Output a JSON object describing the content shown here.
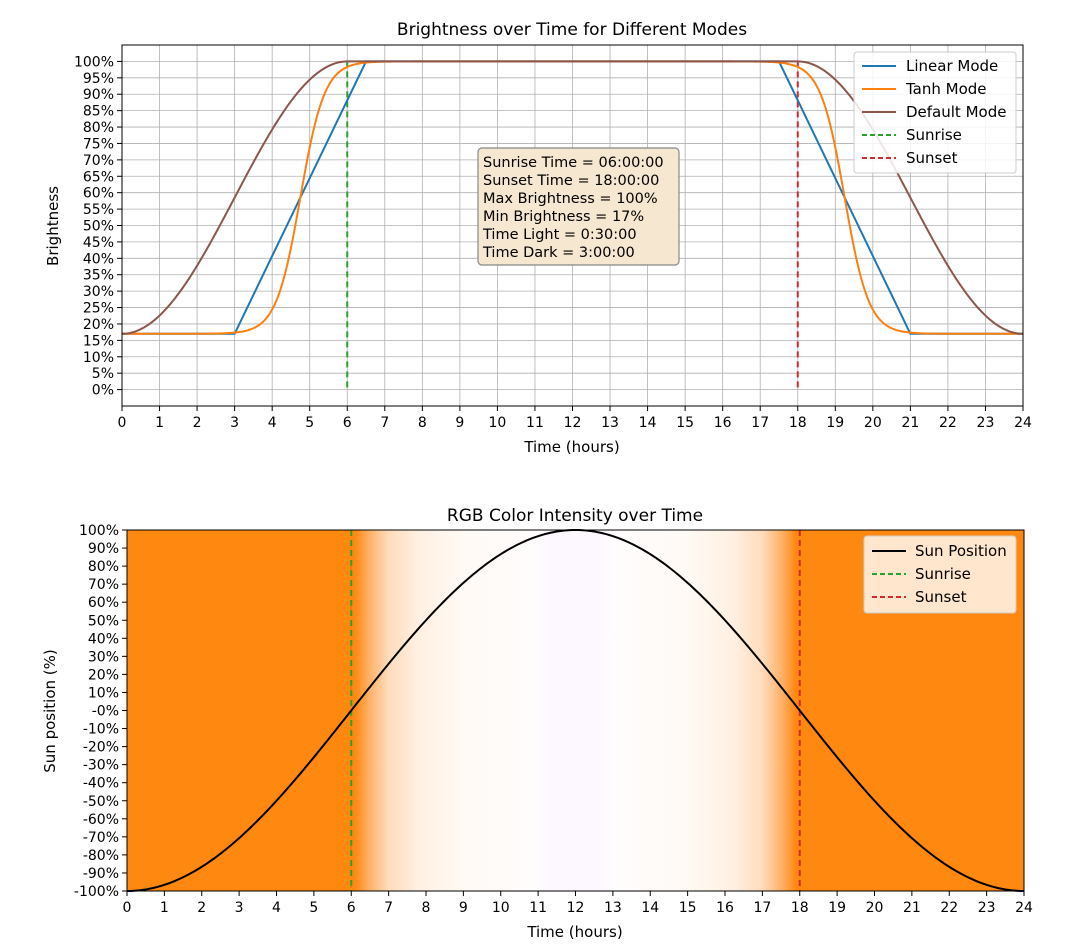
{
  "chart_data": [
    {
      "type": "line",
      "title": "Brightness over Time for Different Modes",
      "xlabel": "Time (hours)",
      "ylabel": "Brightness",
      "xlim": [
        0,
        24
      ],
      "ylim": [
        -5,
        105
      ],
      "grid": true,
      "xticks": [
        0,
        1,
        2,
        3,
        4,
        5,
        6,
        7,
        8,
        9,
        10,
        11,
        12,
        13,
        14,
        15,
        16,
        17,
        18,
        19,
        20,
        21,
        22,
        23,
        24
      ],
      "yticks": [
        0,
        5,
        10,
        15,
        20,
        25,
        30,
        35,
        40,
        45,
        50,
        55,
        60,
        65,
        70,
        75,
        80,
        85,
        90,
        95,
        100
      ],
      "ytick_labels": [
        "0%",
        "5%",
        "10%",
        "15%",
        "20%",
        "25%",
        "30%",
        "35%",
        "40%",
        "45%",
        "50%",
        "55%",
        "60%",
        "65%",
        "70%",
        "75%",
        "80%",
        "85%",
        "90%",
        "95%",
        "100%"
      ],
      "series": [
        {
          "name": "Linear Mode",
          "color": "#1f77b4",
          "x": [
            0,
            3,
            6.5,
            17.5,
            21,
            24
          ],
          "y": [
            17,
            17,
            100,
            100,
            17,
            17
          ]
        },
        {
          "name": "Tanh Mode",
          "color": "#ff7f0e",
          "function": "tanh",
          "min": 17,
          "max": 100,
          "rise_center": 4.75,
          "set_center": 19.25
        },
        {
          "name": "Default Mode",
          "color": "#8c564b",
          "function": "cosine",
          "min": 17,
          "max": 100,
          "x_min_start": 0,
          "x_max_start": 6,
          "x_max_end": 18,
          "x_min_end": 24
        }
      ],
      "vlines": [
        {
          "name": "Sunrise",
          "x": 6,
          "color": "#2ca02c",
          "style": "dashed",
          "y": [
            0,
            100
          ]
        },
        {
          "name": "Sunset",
          "x": 18,
          "color": "#d62728",
          "style": "dashed",
          "y": [
            0,
            100
          ]
        }
      ],
      "legend": {
        "position": "top-right",
        "entries": [
          "Linear Mode",
          "Tanh Mode",
          "Default Mode",
          "Sunrise",
          "Sunset"
        ]
      },
      "annotation": {
        "lines": [
          "Sunrise Time = 06:00:00",
          "Sunset Time = 18:00:00",
          "Max Brightness = 100%",
          "Min Brightness = 17%",
          "Time Light = 0:30:00",
          "Time Dark = 3:00:00"
        ],
        "bg_color": "#f6e7d0",
        "border_color": "#888888",
        "anchor": "center"
      }
    },
    {
      "type": "line",
      "title": "RGB Color Intensity over Time",
      "xlabel": "Time (hours)",
      "ylabel": "Sun position (%)",
      "xlim": [
        0,
        24
      ],
      "ylim": [
        -100,
        100
      ],
      "grid": false,
      "xticks": [
        0,
        1,
        2,
        3,
        4,
        5,
        6,
        7,
        8,
        9,
        10,
        11,
        12,
        13,
        14,
        15,
        16,
        17,
        18,
        19,
        20,
        21,
        22,
        23,
        24
      ],
      "yticks": [
        100,
        90,
        80,
        70,
        60,
        50,
        40,
        30,
        20,
        10,
        0,
        -10,
        -20,
        -30,
        -40,
        -50,
        -60,
        -70,
        -80,
        -90,
        -100
      ],
      "ytick_labels": [
        "100%",
        "90%",
        "80%",
        "70%",
        "60%",
        "50%",
        "40%",
        "30%",
        "20%",
        "10%",
        "-0%",
        "-10%",
        "-20%",
        "-30%",
        "-40%",
        "-50%",
        "-60%",
        "-70%",
        "-80%",
        "-90%",
        "-100%"
      ],
      "series": [
        {
          "name": "Sun Position",
          "color": "#000000",
          "function": "-cos(2*pi*x/24)*100"
        }
      ],
      "background_gradient": {
        "stops": [
          {
            "x": 0,
            "color": "#ff8811"
          },
          {
            "x": 6.1,
            "color": "#ff8811"
          },
          {
            "x": 6.5,
            "color": "#ffb36b"
          },
          {
            "x": 7.0,
            "color": "#ffdcbc"
          },
          {
            "x": 7.8,
            "color": "#fff0e2"
          },
          {
            "x": 9.0,
            "color": "#fffaf5"
          },
          {
            "x": 11.0,
            "color": "#fffcfd"
          },
          {
            "x": 11.4,
            "color": "#fdf7ff"
          },
          {
            "x": 12.6,
            "color": "#fdf7ff"
          },
          {
            "x": 13.0,
            "color": "#fffcfd"
          },
          {
            "x": 15.0,
            "color": "#fffaf5"
          },
          {
            "x": 16.2,
            "color": "#fff0e2"
          },
          {
            "x": 17.0,
            "color": "#ffdcbc"
          },
          {
            "x": 17.5,
            "color": "#ffb36b"
          },
          {
            "x": 17.9,
            "color": "#ff8811"
          },
          {
            "x": 24,
            "color": "#ff8811"
          }
        ]
      },
      "vlines": [
        {
          "name": "Sunrise",
          "x": 6,
          "color": "#2ca02c",
          "style": "dashed",
          "y": [
            -100,
            100
          ]
        },
        {
          "name": "Sunset",
          "x": 18,
          "color": "#d62728",
          "style": "dashed",
          "y": [
            -100,
            100
          ]
        }
      ],
      "legend": {
        "position": "top-right",
        "entries": [
          "Sun Position",
          "Sunrise",
          "Sunset"
        ]
      }
    }
  ]
}
